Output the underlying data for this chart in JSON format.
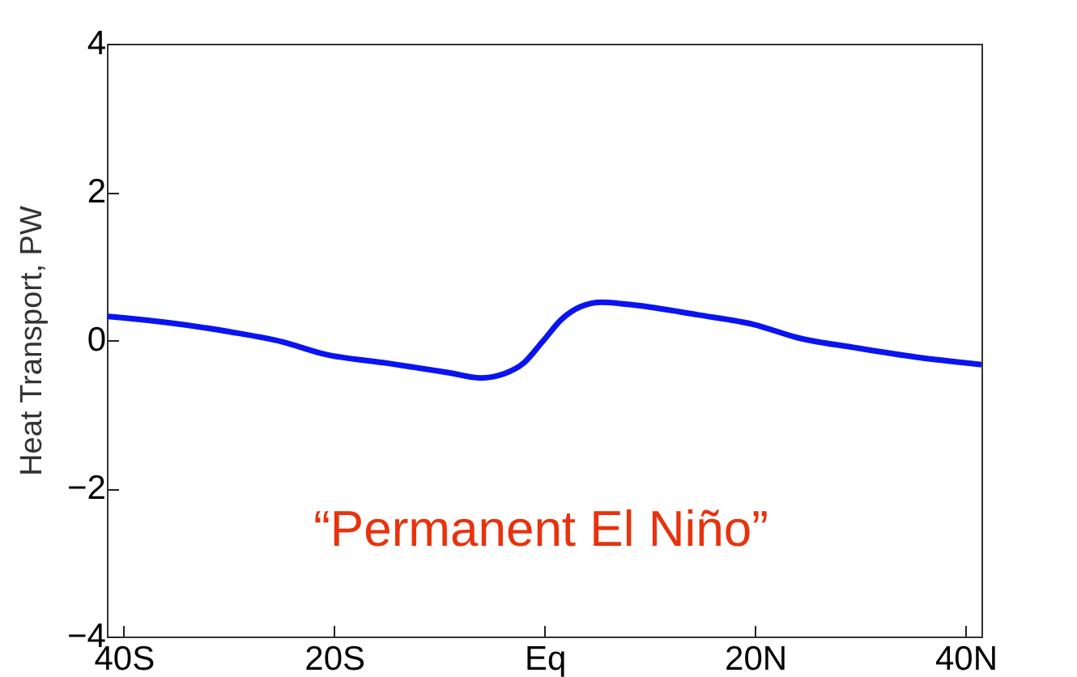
{
  "chart_data": {
    "type": "line",
    "xlabel": null,
    "ylabel": "Heat Transport, PW",
    "x": [
      -41.6,
      -40,
      -29.8,
      -25,
      -20.9,
      -15,
      -9.1,
      -6.1,
      -3.8,
      -2,
      -0.2,
      1.6,
      3.4,
      5.4,
      8.7,
      14.6,
      19.9,
      24.1,
      29.4,
      35.3,
      41.5
    ],
    "series": [
      {
        "color": "#0a14f0",
        "values": [
          0.32,
          0.3,
          0.11,
          -0.02,
          -0.19,
          -0.31,
          -0.44,
          -0.51,
          -0.45,
          -0.31,
          -0.02,
          0.28,
          0.45,
          0.51,
          0.47,
          0.34,
          0.21,
          0.03,
          -0.1,
          -0.23,
          -0.33
        ]
      }
    ],
    "xlim": [
      -41.6,
      41.5
    ],
    "xticks": [
      {
        "value": -40,
        "label": "40S"
      },
      {
        "value": -20,
        "label": "20S"
      },
      {
        "value": 0,
        "label": "Eq"
      },
      {
        "value": 20,
        "label": "20N"
      },
      {
        "value": 40,
        "label": "40N"
      }
    ],
    "ylim": [
      -4,
      4
    ],
    "yticks": [
      {
        "value": -4,
        "label": "−4"
      },
      {
        "value": -2,
        "label": "−2"
      },
      0,
      2,
      4
    ],
    "annotations": [
      "“Permanent El Niño”"
    ],
    "grid": false
  }
}
